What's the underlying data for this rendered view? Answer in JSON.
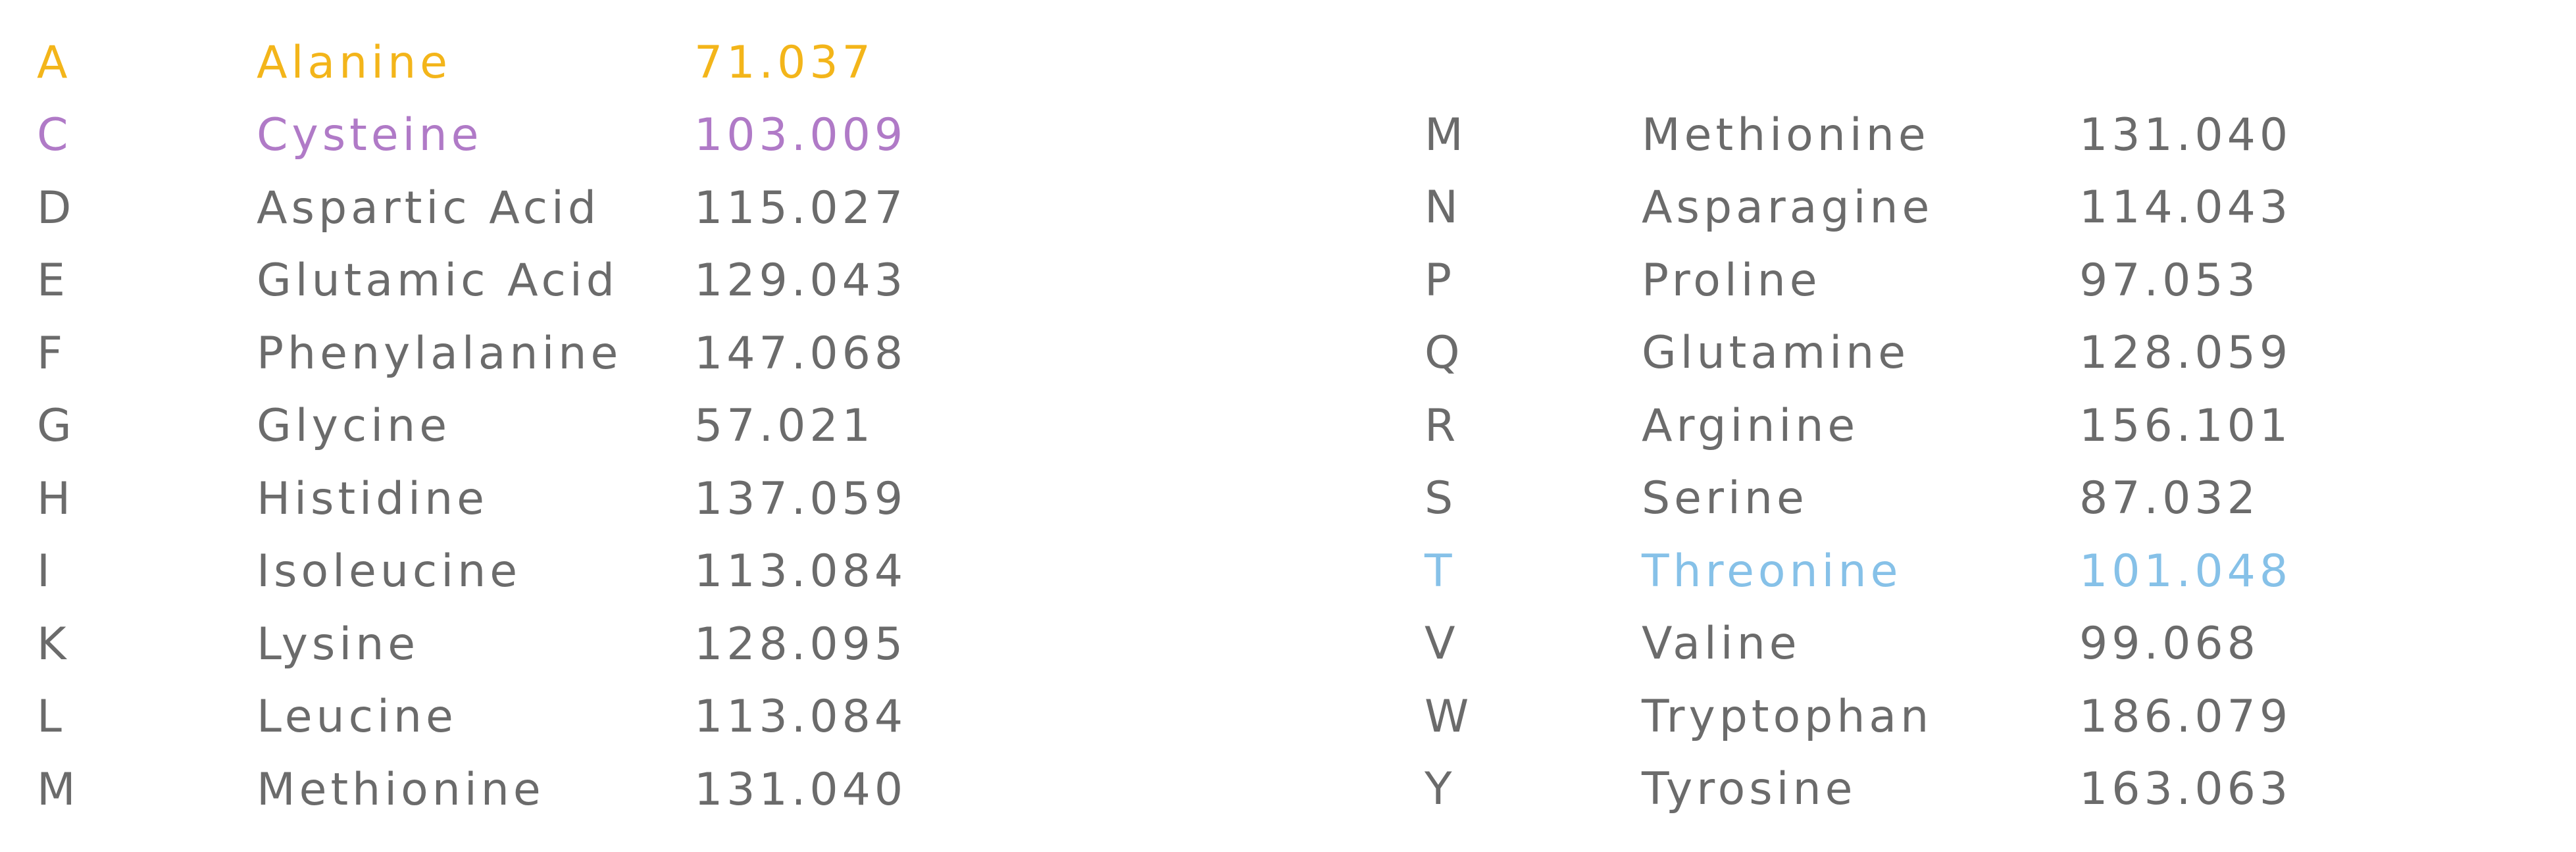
{
  "colors": {
    "text": "#6b6b6b",
    "orange": "#f3b51a",
    "purple": "#b07ac7",
    "blue": "#86c1e8"
  },
  "left_table": [
    {
      "code": "A",
      "name": "Alanine",
      "mass": "71.037"
    },
    {
      "code": "C",
      "name": "Cysteine",
      "mass": "103.009"
    },
    {
      "code": "D",
      "name": "Aspartic Acid",
      "mass": "115.027"
    },
    {
      "code": "E",
      "name": "Glutamic Acid",
      "mass": "129.043"
    },
    {
      "code": "F",
      "name": "Phenylalanine",
      "mass": "147.068"
    },
    {
      "code": "G",
      "name": "Glycine",
      "mass": "57.021"
    },
    {
      "code": "H",
      "name": "Histidine",
      "mass": "137.059"
    },
    {
      "code": "I",
      "name": "Isoleucine",
      "mass": "113.084"
    },
    {
      "code": "K",
      "name": "Lysine",
      "mass": "128.095"
    },
    {
      "code": "L",
      "name": "Leucine",
      "mass": "113.084"
    },
    {
      "code": "M",
      "name": "Methionine",
      "mass": "131.040"
    }
  ],
  "right_table": [
    {
      "code": "M",
      "name": "Methionine",
      "mass": "131.040"
    },
    {
      "code": "N",
      "name": "Asparagine",
      "mass": "114.043"
    },
    {
      "code": "P",
      "name": "Proline",
      "mass": "97.053"
    },
    {
      "code": "Q",
      "name": "Glutamine",
      "mass": "128.059"
    },
    {
      "code": "R",
      "name": "Arginine",
      "mass": "156.101"
    },
    {
      "code": "S",
      "name": "Serine",
      "mass": "87.032"
    },
    {
      "code": "T",
      "name": "Threonine",
      "mass": "101.048"
    },
    {
      "code": "V",
      "name": "Valine",
      "mass": "99.068"
    },
    {
      "code": "W",
      "name": "Tryptophan",
      "mass": "186.079"
    },
    {
      "code": "Y",
      "name": "Tyrosine",
      "mass": "163.063"
    }
  ]
}
